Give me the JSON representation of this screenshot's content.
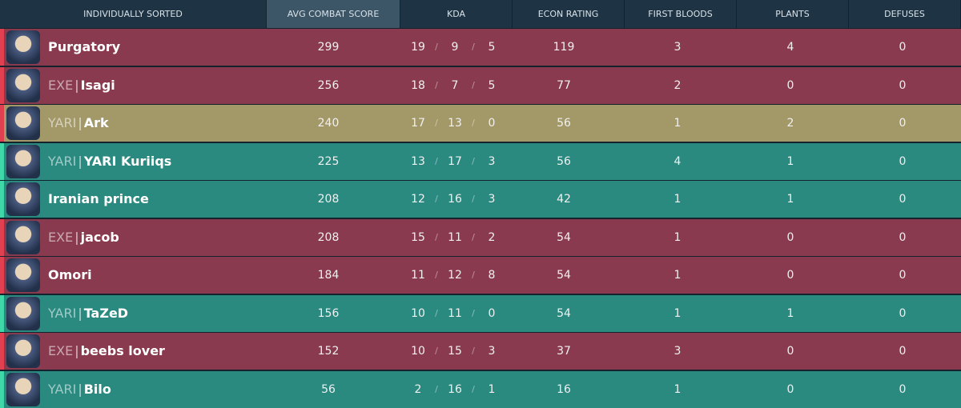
{
  "header": {
    "columns": [
      "INDIVIDUALLY SORTED",
      "AVG COMBAT SCORE",
      "KDA",
      "ECON RATING",
      "FIRST BLOODS",
      "PLANTS",
      "DEFUSES"
    ]
  },
  "kda_separator": "/",
  "tag_separator": "|",
  "rows": [
    {
      "tag": null,
      "name": "Purgatory",
      "acs": 299,
      "kills": 19,
      "deaths": 9,
      "assists": 5,
      "econ": 119,
      "first_bloods": 3,
      "plants": 4,
      "defuses": 0,
      "color": "#8a3a4e",
      "stripe": "#e0404f"
    },
    {
      "tag": "EXE",
      "name": "Isagi",
      "acs": 256,
      "kills": 18,
      "deaths": 7,
      "assists": 5,
      "econ": 77,
      "first_bloods": 2,
      "plants": 0,
      "defuses": 0,
      "color": "#8a3a4e",
      "stripe": "#e0404f"
    },
    {
      "tag": "YARI",
      "name": "Ark",
      "acs": 240,
      "kills": 17,
      "deaths": 13,
      "assists": 0,
      "econ": 56,
      "first_bloods": 1,
      "plants": 2,
      "defuses": 0,
      "color": "#a39868",
      "stripe": "#e0404f"
    },
    {
      "tag": "YARI",
      "name": "YARI Kuriiqs",
      "acs": 225,
      "kills": 13,
      "deaths": 17,
      "assists": 3,
      "econ": 56,
      "first_bloods": 4,
      "plants": 1,
      "defuses": 0,
      "color": "#2a8a80",
      "stripe": "#3fd6a8"
    },
    {
      "tag": null,
      "name": "Iranian prince",
      "acs": 208,
      "kills": 12,
      "deaths": 16,
      "assists": 3,
      "econ": 42,
      "first_bloods": 1,
      "plants": 1,
      "defuses": 0,
      "color": "#2a8a80",
      "stripe": "#3fd6a8"
    },
    {
      "tag": "EXE",
      "name": "jacob",
      "acs": 208,
      "kills": 15,
      "deaths": 11,
      "assists": 2,
      "econ": 54,
      "first_bloods": 1,
      "plants": 0,
      "defuses": 0,
      "color": "#8a3a4e",
      "stripe": "#e0404f"
    },
    {
      "tag": null,
      "name": "Omori",
      "acs": 184,
      "kills": 11,
      "deaths": 12,
      "assists": 8,
      "econ": 54,
      "first_bloods": 1,
      "plants": 0,
      "defuses": 0,
      "color": "#8a3a4e",
      "stripe": "#e0404f"
    },
    {
      "tag": "YARI",
      "name": "TaZeD",
      "acs": 156,
      "kills": 10,
      "deaths": 11,
      "assists": 0,
      "econ": 54,
      "first_bloods": 1,
      "plants": 1,
      "defuses": 0,
      "color": "#2a8a80",
      "stripe": "#3fd6a8"
    },
    {
      "tag": "EXE",
      "name": "beebs lover",
      "acs": 152,
      "kills": 10,
      "deaths": 15,
      "assists": 3,
      "econ": 37,
      "first_bloods": 3,
      "plants": 0,
      "defuses": 0,
      "color": "#8a3a4e",
      "stripe": "#e0404f"
    },
    {
      "tag": "YARI",
      "name": "Bilo",
      "acs": 56,
      "kills": 2,
      "deaths": 16,
      "assists": 1,
      "econ": 16,
      "first_bloods": 1,
      "plants": 0,
      "defuses": 0,
      "color": "#2a8a80",
      "stripe": "#3fd6a8"
    }
  ]
}
